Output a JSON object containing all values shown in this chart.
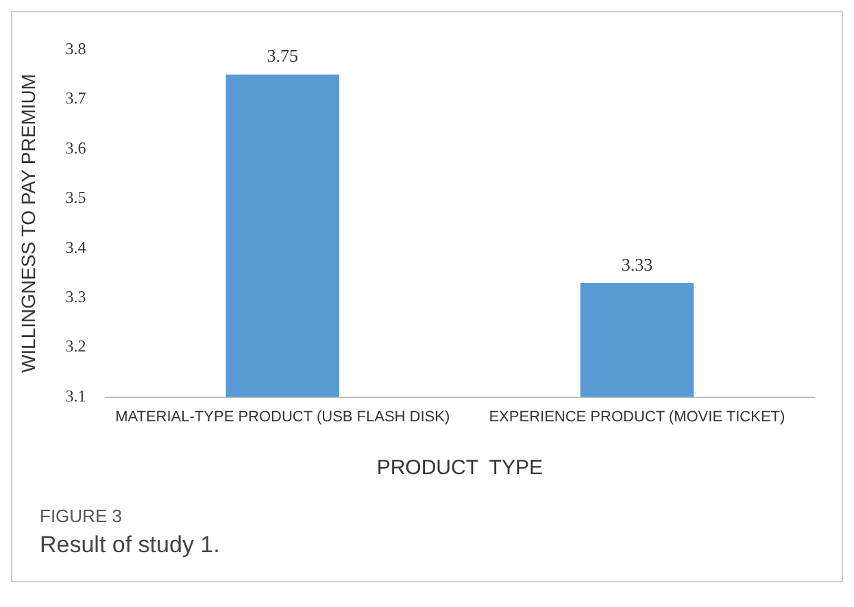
{
  "chart_data": {
    "type": "bar",
    "categories": [
      "MATERIAL-TYPE PRODUCT (USB FLASH DISK)",
      "EXPERIENCE PRODUCT (MOVIE TICKET)"
    ],
    "values": [
      3.75,
      3.33
    ],
    "color": "#5b9bd5",
    "xlabel": "PRODUCT  TYPE",
    "ylabel": "WILLINGNESS TO PAY PREMIUM",
    "ylim": [
      3.1,
      3.8
    ],
    "yticks": [
      3.1,
      3.2,
      3.3,
      3.4,
      3.5,
      3.6,
      3.7,
      3.8
    ],
    "grid": false,
    "legend": false,
    "data_labels": true,
    "annotations": [
      "FIGURE 3",
      "Result of study 1."
    ]
  }
}
